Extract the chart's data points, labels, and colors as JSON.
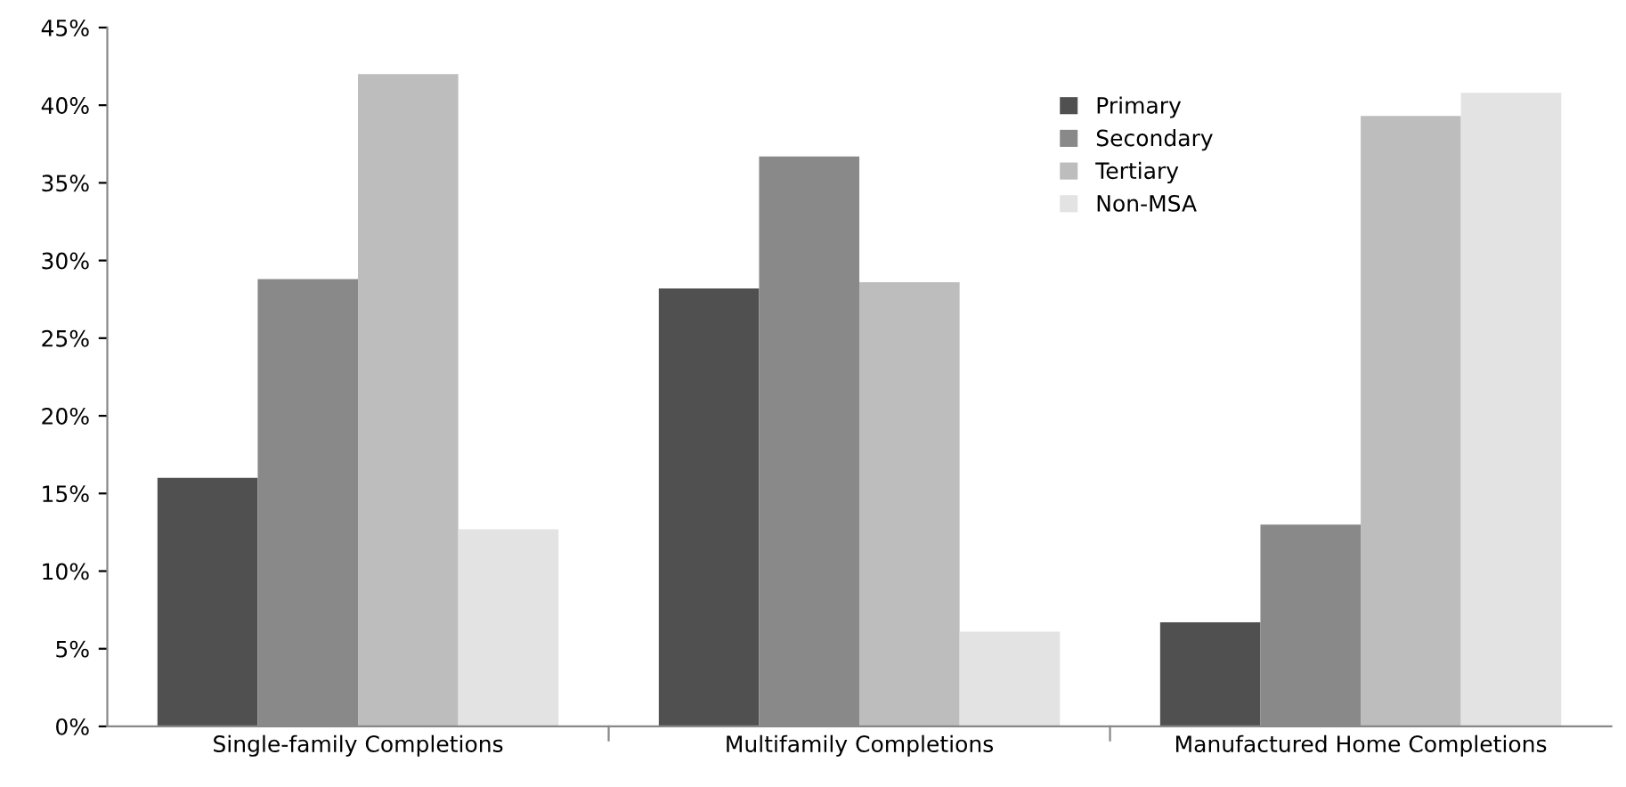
{
  "chart_data": {
    "type": "bar",
    "categories": [
      "Single-family Completions",
      "Multifamily Completions",
      "Manufactured Home Completions"
    ],
    "series": [
      {
        "name": "Primary",
        "color": "#505050",
        "values": [
          16.0,
          28.2,
          6.7
        ]
      },
      {
        "name": "Secondary",
        "color": "#898989",
        "values": [
          28.8,
          36.7,
          13.0
        ]
      },
      {
        "name": "Tertiary",
        "color": "#bdbdbd",
        "values": [
          42.0,
          28.6,
          39.3
        ]
      },
      {
        "name": "Non-MSA",
        "color": "#e3e3e3",
        "values": [
          12.7,
          6.1,
          40.8
        ]
      }
    ],
    "ylim": [
      0,
      45
    ],
    "yticks": [
      {
        "value": 0,
        "label": "0%"
      },
      {
        "value": 5,
        "label": "5%"
      },
      {
        "value": 10,
        "label": "10%"
      },
      {
        "value": 15,
        "label": "15%"
      },
      {
        "value": 20,
        "label": "20%"
      },
      {
        "value": 25,
        "label": "25%"
      },
      {
        "value": 30,
        "label": "30%"
      },
      {
        "value": 35,
        "label": "35%"
      },
      {
        "value": 40,
        "label": "40%"
      },
      {
        "value": 45,
        "label": "45%"
      }
    ],
    "grid": false,
    "legend": "top"
  }
}
